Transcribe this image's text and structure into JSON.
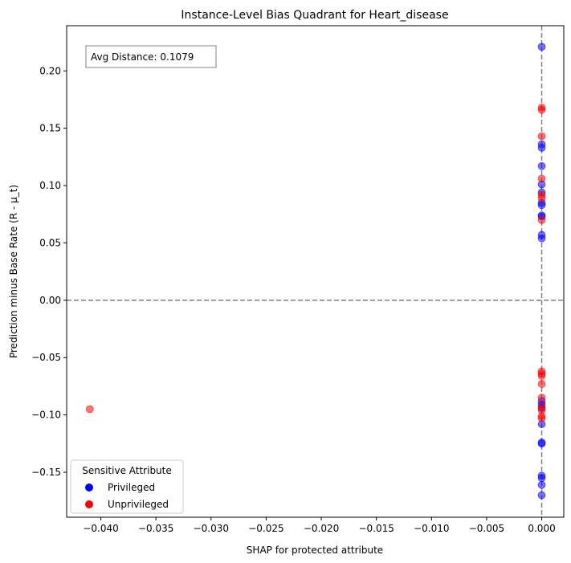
{
  "chart_data": {
    "type": "scatter",
    "title": "Instance-Level Bias Quadrant for Heart_disease",
    "xlabel": "SHAP for protected attribute",
    "ylabel": "Prediction minus Base Rate (R - μ_t)",
    "xlim": [
      -0.0431,
      0.002
    ],
    "ylim": [
      -0.1892,
      0.2394
    ],
    "x_ticks": [
      -0.04,
      -0.035,
      -0.03,
      -0.025,
      -0.02,
      -0.015,
      -0.01,
      -0.005,
      0.0
    ],
    "x_tick_labels": [
      "−0.040",
      "−0.035",
      "−0.030",
      "−0.025",
      "−0.020",
      "−0.015",
      "−0.010",
      "−0.005",
      "0.000"
    ],
    "y_ticks": [
      -0.15,
      -0.1,
      -0.05,
      0.0,
      0.05,
      0.1,
      0.15,
      0.2
    ],
    "y_tick_labels": [
      "−0.15",
      "−0.10",
      "−0.05",
      "0.00",
      "0.05",
      "0.10",
      "0.15",
      "0.20"
    ],
    "reference_lines": {
      "x": 0.0,
      "y": 0.0,
      "style": "dashed",
      "color": "#808080"
    },
    "annotation": "Avg Distance: 0.1079",
    "legend": {
      "title": "Sensitive Attribute",
      "placement": "lower-left",
      "entries": [
        {
          "label": "Privileged",
          "color": "#0000ff"
        },
        {
          "label": "Unprivileged",
          "color": "#ff0000"
        }
      ]
    },
    "series": [
      {
        "name": "Privileged",
        "color": "#0000ff",
        "points": [
          {
            "x": 0.0,
            "y": 0.221
          },
          {
            "x": 0.0,
            "y": 0.136
          },
          {
            "x": 0.0,
            "y": 0.133
          },
          {
            "x": 0.0,
            "y": 0.117
          },
          {
            "x": 0.0,
            "y": 0.101
          },
          {
            "x": 0.0,
            "y": 0.094
          },
          {
            "x": 0.0,
            "y": 0.085
          },
          {
            "x": 0.0,
            "y": 0.083
          },
          {
            "x": 0.0,
            "y": 0.074
          },
          {
            "x": 0.0,
            "y": 0.073
          },
          {
            "x": 0.0,
            "y": 0.057
          },
          {
            "x": 0.0,
            "y": 0.054
          },
          {
            "x": 0.0,
            "y": -0.088
          },
          {
            "x": 0.0,
            "y": -0.091
          },
          {
            "x": 0.0,
            "y": -0.094
          },
          {
            "x": 0.0,
            "y": -0.108
          },
          {
            "x": 0.0,
            "y": -0.124
          },
          {
            "x": 0.0,
            "y": -0.125
          },
          {
            "x": 0.0,
            "y": -0.153
          },
          {
            "x": 0.0,
            "y": -0.155
          },
          {
            "x": 0.0,
            "y": -0.161
          },
          {
            "x": 0.0,
            "y": -0.17
          }
        ]
      },
      {
        "name": "Unprivileged",
        "color": "#ff0000",
        "points": [
          {
            "x": 0.0,
            "y": 0.168
          },
          {
            "x": 0.0,
            "y": 0.166
          },
          {
            "x": 0.0,
            "y": 0.143
          },
          {
            "x": 0.0,
            "y": 0.106
          },
          {
            "x": 0.0,
            "y": 0.092
          },
          {
            "x": 0.0,
            "y": 0.089
          },
          {
            "x": 0.0,
            "y": 0.07
          },
          {
            "x": 0.0,
            "y": -0.062
          },
          {
            "x": 0.0,
            "y": -0.064
          },
          {
            "x": 0.0,
            "y": -0.066
          },
          {
            "x": 0.0,
            "y": -0.073
          },
          {
            "x": 0.0,
            "y": -0.085
          },
          {
            "x": 0.0,
            "y": -0.093
          },
          {
            "x": 0.0,
            "y": -0.096
          },
          {
            "x": 0.0,
            "y": -0.101
          },
          {
            "x": 0.0,
            "y": -0.103
          },
          {
            "x": -0.041,
            "y": -0.095
          }
        ]
      }
    ]
  }
}
